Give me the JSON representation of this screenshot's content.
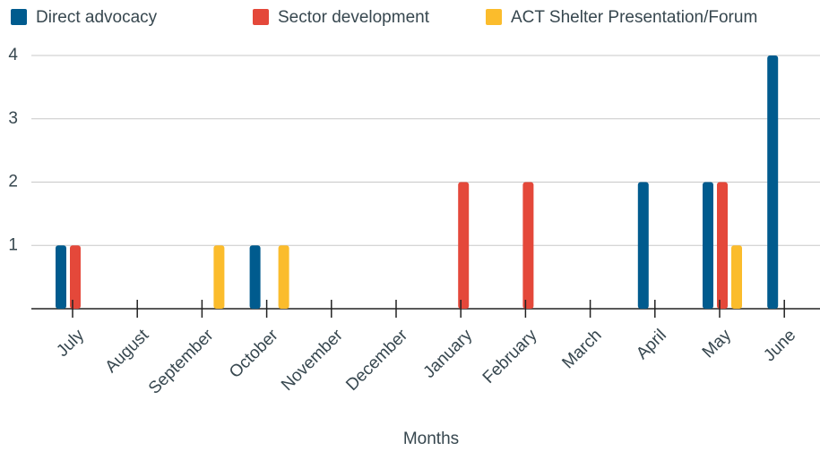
{
  "chart_data": {
    "type": "bar",
    "x_label": "Months",
    "categories": [
      "July",
      "August",
      "September",
      "October",
      "November",
      "December",
      "January",
      "February",
      "March",
      "April",
      "May",
      "June"
    ],
    "series": [
      {
        "name": "Direct advocacy",
        "color": "#005b8e",
        "values": [
          1,
          0,
          0,
          1,
          0,
          0,
          0,
          0,
          0,
          2,
          2,
          4
        ]
      },
      {
        "name": "Sector development",
        "color": "#e4483a",
        "values": [
          1,
          0,
          0,
          0,
          0,
          0,
          2,
          2,
          0,
          0,
          2,
          0
        ]
      },
      {
        "name": "ACT Shelter Presentation/Forum",
        "color": "#fbbc2c",
        "values": [
          0,
          0,
          1,
          1,
          0,
          0,
          0,
          0,
          0,
          0,
          1,
          0
        ]
      }
    ],
    "ylim": [
      0,
      4
    ],
    "yticks": [
      1,
      2,
      3,
      4
    ],
    "grid": true,
    "legend": "top"
  }
}
